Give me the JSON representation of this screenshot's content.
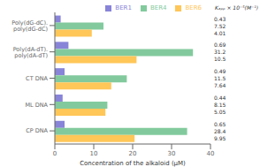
{
  "chart_data": {
    "type": "bar",
    "orientation": "horizontal",
    "categories": [
      "Poly(dG-dC).\npoly(dG-dC)",
      "Poly(dA-dT).\npoly(dA-dT)",
      "CT DNA",
      "ML DNA",
      "CP DNA"
    ],
    "series": [
      {
        "name": "BER1",
        "color": "#8884d8",
        "values": [
          1.5,
          3.5,
          2.5,
          2.0,
          2.5
        ],
        "kapp": [
          0.43,
          0.69,
          0.49,
          0.44,
          0.65
        ]
      },
      {
        "name": "BER4",
        "color": "#82ca9d",
        "values": [
          12.5,
          35.5,
          18.5,
          13.5,
          34.0
        ],
        "kapp": [
          7.52,
          31.2,
          11.5,
          8.15,
          28.4
        ]
      },
      {
        "name": "BER6",
        "color": "#ffc658",
        "values": [
          9.5,
          21.0,
          14.5,
          13.0,
          20.5
        ],
        "kapp": [
          4.01,
          10.5,
          7.64,
          5.05,
          9.95
        ]
      }
    ],
    "xlabel": "Concentration of the alkaloid (μM)",
    "xlim": [
      0,
      40
    ],
    "xticks": [
      0,
      10,
      20,
      30,
      40
    ],
    "annotations": [
      "Kₐₚₚ × 10⁻⁵(M⁻¹)"
    ],
    "legend": "upper right",
    "grid": false
  }
}
